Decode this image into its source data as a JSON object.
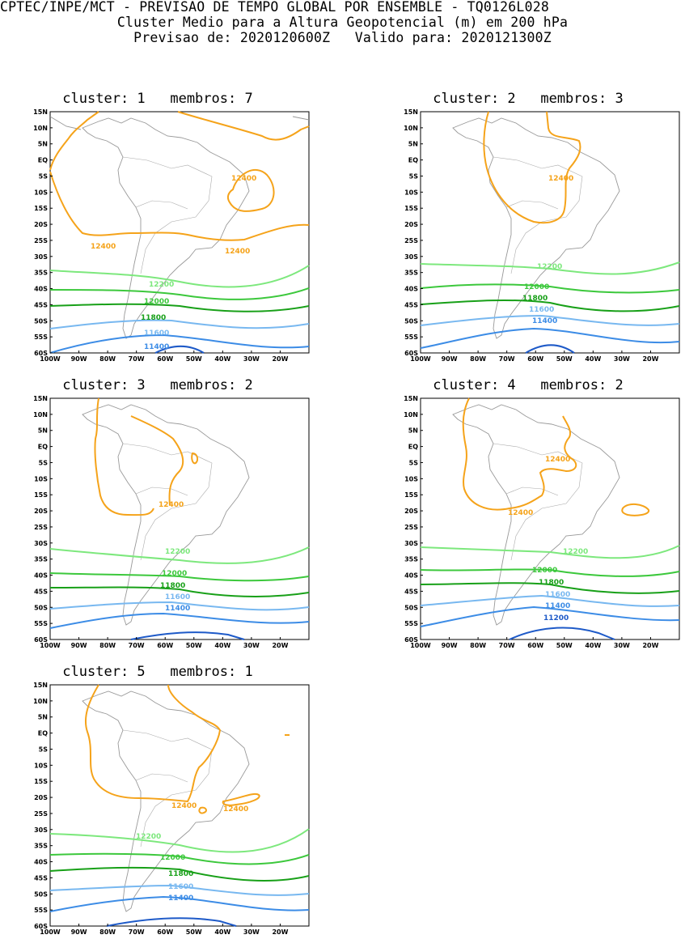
{
  "header": {
    "line1": "CPTEC/INPE/MCT - PREVISAO DE TEMPO GLOBAL POR ENSEMBLE - TQ0126L028",
    "line2": "Cluster Medio para a Altura Geopotencial (m) em 200 hPa",
    "line3": "Previsao de: 2020120600Z   Valido para: 2020121300Z"
  },
  "axes": {
    "lat_labels": [
      "15N",
      "10N",
      "5N",
      "EQ",
      "5S",
      "10S",
      "15S",
      "20S",
      "25S",
      "30S",
      "35S",
      "40S",
      "45S",
      "50S",
      "55S",
      "60S"
    ],
    "lon_labels": [
      "100W",
      "90W",
      "80W",
      "70W",
      "60W",
      "50W",
      "40W",
      "30W",
      "20W"
    ]
  },
  "contour_colors": {
    "12400": "#f5a31a",
    "12200": "#7de87d",
    "12000": "#3cc83c",
    "11800": "#18a018",
    "11600": "#78b8f0",
    "11400": "#3c8ce6",
    "11200": "#1e5ac8"
  },
  "clusters": [
    {
      "title": "cluster: 1   membros: 7",
      "labels": [
        "12400",
        "12400",
        "12400",
        "12200",
        "12000",
        "11800",
        "11600",
        "11400"
      ]
    },
    {
      "title": "cluster: 2   membros: 3",
      "labels": [
        "12400",
        "12200",
        "12000",
        "11800",
        "11600",
        "11400"
      ]
    },
    {
      "title": "cluster: 3   membros: 2",
      "labels": [
        "12400",
        "12200",
        "12000",
        "11800",
        "11600",
        "11400"
      ]
    },
    {
      "title": "cluster: 4   membros: 2",
      "labels": [
        "12400",
        "12400",
        "12200",
        "12000",
        "11800",
        "11600",
        "11400",
        "11200"
      ]
    },
    {
      "title": "cluster: 5   membros: 1",
      "labels": [
        "12400",
        "12400",
        "12200",
        "12000",
        "11800",
        "11600",
        "11400"
      ]
    }
  ]
}
